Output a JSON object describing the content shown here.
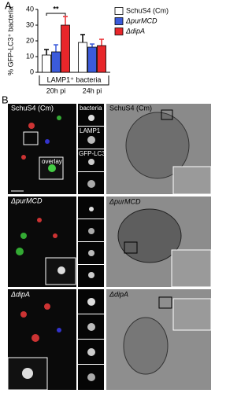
{
  "panel_labels": [
    "A",
    "B"
  ],
  "chart_data": {
    "type": "bar",
    "y_label": "% GFP-LC3⁺ bacteria",
    "group_label": "LAMP1⁺ bacteria",
    "categories": [
      "20h pi",
      "24h pi"
    ],
    "annotation": "**",
    "series": [
      {
        "name": "SchuS4 (Cm)",
        "color": "#ffffff",
        "values": [
          11,
          19
        ],
        "errors": [
          3.5,
          5
        ]
      },
      {
        "name": "ΔpurMCD",
        "color": "#3b5bdb",
        "values": [
          13,
          16
        ],
        "errors": [
          4.5,
          2
        ]
      },
      {
        "name": "ΔdipA",
        "color": "#e8262a",
        "values": [
          30,
          17
        ],
        "errors": [
          5.5,
          4
        ]
      }
    ],
    "ylim": [
      0,
      40
    ],
    "yticks": [
      0,
      10,
      20,
      30,
      40
    ],
    "legend": "right"
  },
  "micrographs": {
    "fluorescence": [
      {
        "strain": "SchuS4 (Cm)",
        "channels": [
          "bacteria",
          "LAMP1",
          "GFP-LC3",
          "overlay"
        ]
      },
      {
        "strain": "ΔpurMCD"
      },
      {
        "strain": "ΔdipA"
      }
    ],
    "em": [
      "SchuS4 (Cm)",
      "ΔpurMCD",
      "ΔdipA"
    ]
  }
}
